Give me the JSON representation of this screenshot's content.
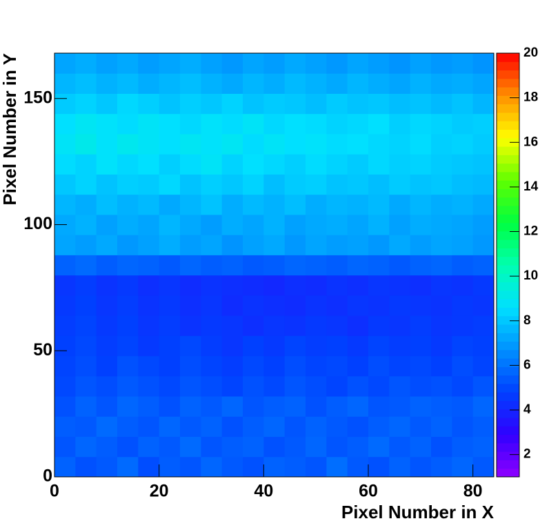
{
  "chart_data": {
    "type": "heatmap",
    "x_label": "Pixel Number in X",
    "y_label": "Pixel Number in Y",
    "xbins": [
      0,
      4,
      8,
      12,
      16,
      20,
      24,
      28,
      32,
      36,
      40,
      44,
      48,
      52,
      56,
      60,
      64,
      68,
      72,
      76,
      80,
      84
    ],
    "ybins": [
      0,
      8,
      16,
      24,
      32,
      40,
      48,
      56,
      64,
      72,
      80,
      88,
      96,
      104,
      112,
      120,
      128,
      136,
      144,
      152,
      160,
      168
    ],
    "xlim": [
      0,
      84
    ],
    "ylim": [
      0,
      168
    ],
    "zlim": [
      1,
      20
    ],
    "xticks": [
      0,
      20,
      40,
      60,
      80
    ],
    "yticks": [
      0,
      50,
      100,
      150
    ],
    "zticks": [
      2,
      4,
      6,
      8,
      10,
      12,
      14,
      16,
      18,
      20
    ],
    "palette": [
      "#9000ff",
      "#3000ff",
      "#0040ff",
      "#0090ff",
      "#00e0ff",
      "#00ffb0",
      "#00ff40",
      "#60ff00",
      "#ffff00",
      "#ff9000",
      "#ff0000"
    ],
    "z": [
      [
        5.6,
        5.2,
        5.4,
        5.8,
        5.1,
        5.5,
        5.3,
        5.7,
        5.4,
        5.2,
        5.6,
        5.5,
        5.3,
        5.9,
        5.4,
        5.2,
        5.6,
        5.3,
        5.5,
        5.7,
        5.4
      ],
      [
        5.3,
        5.7,
        5.5,
        5.2,
        5.6,
        5.4,
        5.8,
        5.3,
        5.5,
        5.6,
        5.2,
        5.4,
        5.7,
        5.3,
        5.5,
        5.8,
        5.4,
        5.6,
        5.2,
        5.5,
        5.6
      ],
      [
        5.5,
        5.4,
        5.8,
        5.5,
        5.3,
        5.7,
        5.4,
        5.6,
        5.2,
        5.5,
        5.7,
        5.3,
        5.6,
        5.4,
        5.2,
        5.5,
        5.7,
        5.4,
        5.6,
        5.3,
        5.5
      ],
      [
        5.2,
        5.6,
        5.3,
        5.7,
        5.5,
        5.2,
        5.6,
        5.4,
        5.7,
        5.3,
        5.5,
        5.6,
        5.2,
        5.5,
        5.7,
        5.3,
        5.4,
        5.6,
        5.5,
        5.4,
        5.7
      ],
      [
        5.0,
        5.3,
        5.1,
        5.4,
        5.2,
        5.0,
        5.3,
        5.1,
        4.9,
        5.2,
        5.0,
        5.3,
        5.1,
        4.9,
        5.2,
        5.0,
        5.3,
        5.1,
        5.2,
        5.0,
        5.3
      ],
      [
        4.9,
        5.1,
        4.8,
        5.2,
        5.0,
        4.8,
        5.1,
        4.9,
        4.7,
        5.0,
        4.8,
        5.1,
        4.9,
        5.0,
        4.8,
        5.1,
        4.9,
        5.0,
        4.8,
        5.1,
        4.9
      ],
      [
        4.8,
        5.0,
        4.7,
        4.9,
        4.6,
        4.8,
        5.0,
        4.7,
        4.5,
        4.8,
        4.6,
        4.9,
        4.7,
        4.8,
        4.6,
        4.9,
        4.7,
        4.8,
        4.6,
        4.9,
        4.8
      ],
      [
        4.7,
        4.9,
        4.6,
        4.8,
        4.5,
        4.7,
        4.4,
        4.6,
        4.5,
        4.3,
        4.5,
        4.4,
        4.6,
        4.5,
        4.3,
        4.6,
        4.5,
        4.7,
        4.5,
        4.6,
        4.7
      ],
      [
        4.6,
        4.8,
        4.5,
        4.7,
        4.4,
        4.6,
        4.3,
        4.5,
        4.2,
        4.4,
        4.3,
        4.2,
        4.4,
        4.3,
        4.5,
        4.4,
        4.6,
        4.5,
        4.4,
        4.6,
        4.5
      ],
      [
        4.5,
        4.7,
        4.4,
        4.6,
        4.3,
        4.5,
        4.2,
        4.4,
        4.3,
        4.2,
        4.1,
        4.3,
        4.2,
        4.4,
        4.3,
        4.5,
        4.4,
        4.3,
        4.5,
        4.4,
        4.6
      ],
      [
        5.6,
        5.8,
        5.5,
        5.7,
        5.6,
        5.4,
        5.7,
        5.5,
        5.6,
        5.4,
        5.5,
        5.7,
        5.6,
        5.5,
        5.7,
        5.6,
        5.4,
        5.6,
        5.7,
        5.5,
        5.6
      ],
      [
        7.2,
        7.0,
        7.3,
        6.9,
        7.1,
        7.4,
        7.0,
        7.2,
        6.8,
        7.1,
        7.3,
        6.9,
        7.2,
        7.0,
        7.1,
        6.9,
        7.3,
        7.0,
        7.2,
        7.1,
        6.9
      ],
      [
        7.3,
        7.5,
        7.1,
        7.4,
        7.2,
        7.6,
        7.3,
        7.0,
        7.4,
        7.2,
        7.5,
        7.1,
        7.3,
        7.4,
        7.2,
        7.5,
        7.1,
        7.4,
        7.3,
        7.2,
        7.0
      ],
      [
        7.6,
        7.4,
        7.8,
        7.5,
        7.7,
        7.3,
        7.6,
        7.9,
        7.4,
        7.7,
        7.5,
        7.8,
        7.4,
        7.6,
        7.5,
        7.7,
        7.3,
        7.6,
        7.4,
        7.5,
        7.3
      ],
      [
        8.0,
        8.3,
        7.9,
        8.2,
        8.1,
        8.4,
        7.9,
        8.2,
        8.0,
        8.3,
        7.8,
        8.1,
        8.2,
        7.9,
        8.0,
        7.8,
        8.1,
        7.9,
        8.0,
        7.8,
        7.7
      ],
      [
        8.5,
        8.3,
        8.7,
        8.4,
        8.6,
        8.2,
        8.5,
        8.8,
        8.3,
        8.6,
        8.4,
        8.2,
        8.5,
        8.3,
        8.1,
        8.4,
        8.2,
        8.3,
        8.1,
        8.0,
        7.9
      ],
      [
        8.8,
        9.1,
        8.7,
        9.0,
        8.8,
        8.6,
        8.9,
        8.7,
        8.9,
        8.5,
        8.8,
        8.6,
        8.7,
        8.5,
        8.6,
        8.4,
        8.3,
        8.5,
        8.2,
        8.3,
        8.1
      ],
      [
        8.6,
        8.9,
        8.7,
        8.5,
        8.8,
        8.6,
        8.4,
        8.7,
        8.5,
        8.8,
        8.4,
        8.6,
        8.5,
        8.3,
        8.4,
        8.6,
        8.2,
        8.4,
        8.3,
        8.1,
        8.2
      ],
      [
        8.1,
        8.3,
        8.0,
        8.4,
        8.2,
        7.9,
        8.2,
        8.0,
        8.3,
        7.9,
        8.1,
        8.0,
        7.8,
        8.1,
        7.9,
        8.0,
        7.8,
        7.9,
        7.7,
        7.9,
        7.6
      ],
      [
        7.6,
        7.8,
        7.5,
        7.7,
        7.4,
        7.6,
        7.8,
        7.5,
        7.3,
        7.6,
        7.4,
        7.7,
        7.5,
        7.3,
        7.6,
        7.4,
        7.2,
        7.5,
        7.3,
        7.4,
        7.2
      ],
      [
        7.2,
        7.4,
        7.1,
        7.3,
        7.0,
        7.2,
        7.4,
        7.1,
        6.9,
        7.2,
        7.0,
        7.3,
        7.1,
        6.9,
        7.2,
        7.0,
        6.8,
        7.1,
        6.9,
        7.0,
        6.8
      ]
    ]
  }
}
